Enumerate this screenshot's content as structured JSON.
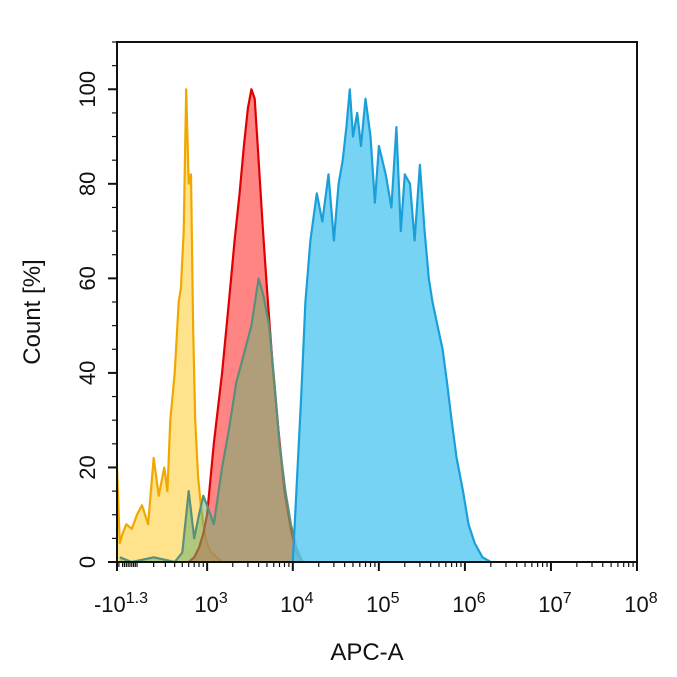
{
  "chart_data": {
    "type": "area",
    "title": "",
    "xlabel": "APC-A",
    "ylabel": "Count [%]",
    "xscale": "biexponential",
    "xlim": [
      -20,
      100000000
    ],
    "ylim": [
      0,
      110
    ],
    "grid": false,
    "legend": "none",
    "x_ticks": [
      {
        "value": -20,
        "label": "-10",
        "sup": "1.3"
      },
      {
        "value": 1000,
        "label": "10",
        "sup": "3"
      },
      {
        "value": 10000,
        "label": "10",
        "sup": "4"
      },
      {
        "value": 100000,
        "label": "10",
        "sup": "5"
      },
      {
        "value": 1000000,
        "label": "10",
        "sup": "6"
      },
      {
        "value": 10000000,
        "label": "10",
        "sup": "7"
      },
      {
        "value": 100000000,
        "label": "10",
        "sup": "8"
      }
    ],
    "y_ticks": [
      0,
      20,
      40,
      60,
      80,
      100
    ],
    "series": [
      {
        "color_fill": "#ffd966",
        "color_line": "#f0a800",
        "opacity": 0.75,
        "x": [
          -20,
          -5,
          10,
          30,
          60,
          90,
          120,
          160,
          200,
          240,
          290,
          320,
          350,
          400,
          450,
          480,
          520,
          560,
          600,
          640,
          680,
          720,
          780,
          840,
          900,
          960,
          1040,
          1120,
          1300,
          1500
        ],
        "y": [
          20,
          4,
          6,
          8,
          7,
          10,
          12,
          8,
          22,
          14,
          20,
          15,
          30,
          40,
          55,
          58,
          70,
          100,
          80,
          82,
          50,
          30,
          18,
          12,
          8,
          5,
          3,
          2,
          1,
          0
        ]
      },
      {
        "color_fill": "#ff4444",
        "color_line": "#e00000",
        "opacity": 0.65,
        "x": [
          600,
          700,
          800,
          900,
          1000,
          1200,
          1500,
          1800,
          2100,
          2400,
          2700,
          3000,
          3300,
          3600,
          4000,
          4500,
          5000,
          5800,
          6800,
          8000,
          9500,
          11000,
          13000
        ],
        "y": [
          0,
          1,
          3,
          6,
          10,
          25,
          40,
          55,
          68,
          78,
          88,
          96,
          100,
          98,
          85,
          70,
          58,
          42,
          28,
          15,
          7,
          2,
          0
        ]
      },
      {
        "color_fill": "#6db370",
        "color_line": "#5a8f7a",
        "opacity": 0.55,
        "x": [
          -5,
          60,
          200,
          400,
          500,
          600,
          700,
          800,
          900,
          1000,
          1200,
          1500,
          1800,
          2200,
          2700,
          3300,
          4000,
          4600,
          5300,
          6100,
          7000,
          8200,
          9500,
          11000,
          13000
        ],
        "y": [
          1,
          0,
          1,
          0,
          2,
          15,
          5,
          10,
          14,
          12,
          8,
          20,
          28,
          38,
          44,
          50,
          60,
          56,
          50,
          38,
          25,
          15,
          8,
          3,
          0
        ]
      },
      {
        "color_fill": "#55c8f0",
        "color_line": "#1a9fd8",
        "opacity": 0.8,
        "x": [
          10000,
          11000,
          12500,
          14000,
          16000,
          19000,
          22000,
          26000,
          30000,
          34000,
          38000,
          42000,
          46000,
          50000,
          56000,
          62000,
          70000,
          80000,
          90000,
          100000,
          120000,
          140000,
          160000,
          180000,
          200000,
          230000,
          260000,
          300000,
          340000,
          380000,
          420000,
          480000,
          550000,
          620000,
          700000,
          800000,
          950000,
          1100000,
          1300000,
          1600000,
          2000000
        ],
        "y": [
          0,
          15,
          35,
          55,
          68,
          78,
          72,
          82,
          68,
          80,
          85,
          92,
          100,
          90,
          95,
          88,
          98,
          90,
          76,
          88,
          82,
          75,
          92,
          70,
          82,
          80,
          68,
          84,
          70,
          60,
          55,
          50,
          45,
          38,
          30,
          22,
          15,
          8,
          4,
          1,
          0
        ]
      }
    ]
  }
}
